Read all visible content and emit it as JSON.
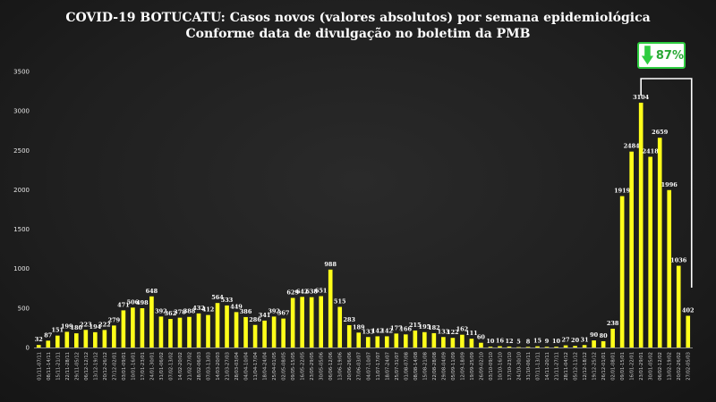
{
  "chart_data": {
    "type": "bar",
    "title": "COVID-19 BOTUCATU: Casos novos (valores absolutos) por semana epidemiológica",
    "subtitle": "Conforme data de divulgação no boletim da PMB",
    "ylim": [
      0,
      3500
    ],
    "yticks": [
      0,
      500,
      1000,
      1500,
      2000,
      2500,
      3000,
      3500
    ],
    "bar_color": "#ffff1a",
    "grid": false,
    "categories": [
      "01/11-07/11",
      "08/11-14/11",
      "15/11-21/11",
      "22/11-28/11",
      "29/11-05/12",
      "06/12-12/12",
      "13/12-19/12",
      "20/12-26/12",
      "27/12-02/01",
      "03/01-09/01",
      "10/01-16/01",
      "17/01-23/01",
      "24/01-30/01",
      "31/01-06/02",
      "07/02-13/02",
      "14/02-20/02",
      "21/02-27/02",
      "28/02-06/03",
      "07/03-13/03",
      "14/03-20/03",
      "21/03-27/03",
      "28/03-03/04",
      "04/04-10/04",
      "11/04-17/04",
      "18/04-24/04",
      "25/04-01/05",
      "02/05-08/05",
      "09/05-15/05",
      "16/05-22/05",
      "23/05-29/05",
      "30/05-05/06",
      "06/06-12/06",
      "13/06-19/06",
      "20/06-26/06",
      "27/06-03/07",
      "04/07-10/07",
      "11/07-17/07",
      "18/07-24/07",
      "25/07-31/07",
      "01/08-07/08",
      "08/08-14/08",
      "15/08-21/08",
      "22/08-28/08",
      "29/08-04/09",
      "05/09-11/09",
      "12/09-18/09",
      "19/09-25/09",
      "26/09-02/10",
      "03/10-09/10",
      "10/10-16/10",
      "17/10-23/10",
      "24/10-30/10",
      "31/10-06/11",
      "07/11-13/11",
      "14/11-20/11",
      "21/11-27/11",
      "28/11-04/12",
      "05/12-11/12",
      "12/12-18/12",
      "19/12-25/12",
      "26/12-01/01",
      "02/01-08/01",
      "09/01-15/01",
      "16/01-22/01",
      "23/01-29/01",
      "30/01-05/02",
      "06/02-12/02",
      "13/02-19/02",
      "20/02-26/02",
      "27/02-05/03"
    ],
    "values": [
      32,
      87,
      151,
      199,
      180,
      223,
      194,
      222,
      279,
      471,
      506,
      498,
      648,
      392,
      362,
      378,
      388,
      432,
      412,
      564,
      533,
      449,
      386,
      286,
      341,
      392,
      367,
      629,
      642,
      638,
      651,
      988,
      515,
      283,
      189,
      133,
      142,
      142,
      177,
      166,
      215,
      195,
      182,
      133,
      122,
      162,
      111,
      60,
      10,
      16,
      12,
      5,
      8,
      15,
      9,
      10,
      27,
      20,
      31,
      90,
      80,
      238,
      1919,
      2484,
      3104,
      2418,
      2659,
      1996,
      1036,
      402
    ],
    "annotation": {
      "text": "87%",
      "arrow": "down",
      "color": "#2ecc40"
    }
  }
}
